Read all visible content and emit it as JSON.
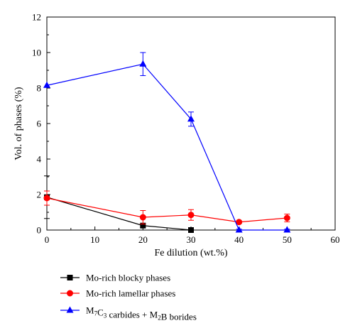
{
  "chart_data": {
    "type": "line",
    "title": "",
    "xlabel": "Fe dilution (wt.%)",
    "ylabel": "Vol. of phases (%)",
    "xlim": [
      0,
      60
    ],
    "ylim": [
      0,
      12
    ],
    "xticks": [
      "0",
      "10",
      "20",
      "30",
      "40",
      "50",
      "60"
    ],
    "yticks": [
      "0",
      "2",
      "4",
      "6",
      "8",
      "10",
      "12"
    ],
    "grid": false,
    "legend_position": "bottom",
    "series": [
      {
        "name": "Mo-rich blocky phases",
        "legend_parts": [
          {
            "t": "Mo-rich blocky phases"
          }
        ],
        "color": "#000000",
        "marker": "square",
        "x": [
          0,
          20,
          30
        ],
        "y": [
          1.85,
          0.25,
          0.0
        ],
        "err": [
          1.2,
          0.1,
          0.05
        ]
      },
      {
        "name": "Mo-rich lamellar phases",
        "legend_parts": [
          {
            "t": "Mo-rich lamellar phases"
          }
        ],
        "color": "#ff0000",
        "marker": "circle",
        "x": [
          0,
          20,
          30,
          40,
          50
        ],
        "y": [
          1.8,
          0.72,
          0.85,
          0.45,
          0.68
        ],
        "err": [
          0.4,
          0.38,
          0.3,
          0.08,
          0.22
        ]
      },
      {
        "name": "M7C3 carbides + M2B borides",
        "legend_parts": [
          {
            "t": "M"
          },
          {
            "t": "7",
            "sub": true
          },
          {
            "t": "C"
          },
          {
            "t": "3",
            "sub": true
          },
          {
            "t": " carbides + M"
          },
          {
            "t": "2",
            "sub": true
          },
          {
            "t": "B borides"
          }
        ],
        "color": "#0000ff",
        "marker": "triangle",
        "x": [
          0,
          20,
          30,
          40,
          50
        ],
        "y": [
          8.15,
          9.35,
          6.25,
          0.0,
          0.0
        ],
        "err": [
          0.0,
          0.65,
          0.4,
          0.05,
          0.05
        ]
      }
    ]
  }
}
